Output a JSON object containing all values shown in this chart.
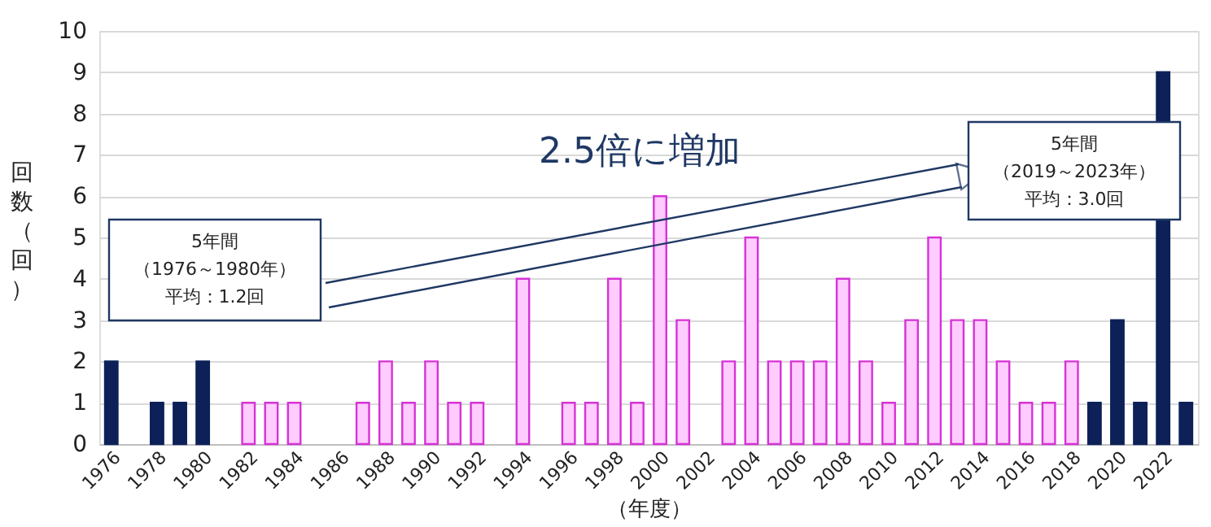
{
  "chart_data": {
    "type": "bar",
    "xlabel": "（年度）",
    "ylabel": "回数（回）",
    "categories": [
      "1976",
      null,
      "1978",
      null,
      "1980",
      null,
      "1982",
      null,
      "1984",
      null,
      "1986",
      null,
      "1988",
      null,
      "1990",
      null,
      "1992",
      null,
      "1994",
      null,
      "1996",
      null,
      "1998",
      null,
      "2000",
      null,
      "2002",
      null,
      "2004",
      null,
      "2006",
      null,
      "2008",
      null,
      "2010",
      null,
      "2012",
      null,
      "2014",
      null,
      "2016",
      null,
      "2018",
      null,
      "2020",
      null,
      "2022",
      null
    ],
    "values": [
      2,
      0,
      1,
      1,
      2,
      0,
      1,
      1,
      1,
      0,
      0,
      1,
      2,
      1,
      2,
      1,
      1,
      0,
      4,
      0,
      1,
      1,
      4,
      1,
      6,
      3,
      0,
      2,
      5,
      2,
      2,
      2,
      4,
      2,
      1,
      3,
      5,
      3,
      3,
      2,
      1,
      1,
      2,
      1,
      3,
      1,
      9,
      1
    ],
    "colors": [
      "#0d2158",
      "#0d2158",
      "#0d2158",
      "#0d2158",
      "#0d2158",
      "#ffccff",
      "#ffccff",
      "#ffccff",
      "#ffccff",
      "#ffccff",
      "#ffccff",
      "#ffccff",
      "#ffccff",
      "#ffccff",
      "#ffccff",
      "#ffccff",
      "#ffccff",
      "#ffccff",
      "#ffccff",
      "#ffccff",
      "#ffccff",
      "#ffccff",
      "#ffccff",
      "#ffccff",
      "#ffccff",
      "#ffccff",
      "#ffccff",
      "#ffccff",
      "#ffccff",
      "#ffccff",
      "#ffccff",
      "#ffccff",
      "#ffccff",
      "#ffccff",
      "#ffccff",
      "#ffccff",
      "#ffccff",
      "#ffccff",
      "#ffccff",
      "#ffccff",
      "#ffccff",
      "#ffccff",
      "#ffccff",
      "#0d2158",
      "#0d2158",
      "#0d2158",
      "#0d2158",
      "#0d2158"
    ],
    "ylim": [
      0,
      10
    ],
    "yticks": [
      0,
      1,
      2,
      3,
      4,
      5,
      6,
      7,
      8,
      9,
      10
    ],
    "grid": "y",
    "annotations": [
      "5年間",
      "（1976～1980年）",
      "平均：1.2回",
      "2.5倍に増加",
      "5年間",
      "（2019～2023年）",
      "平均：3.0回"
    ]
  }
}
